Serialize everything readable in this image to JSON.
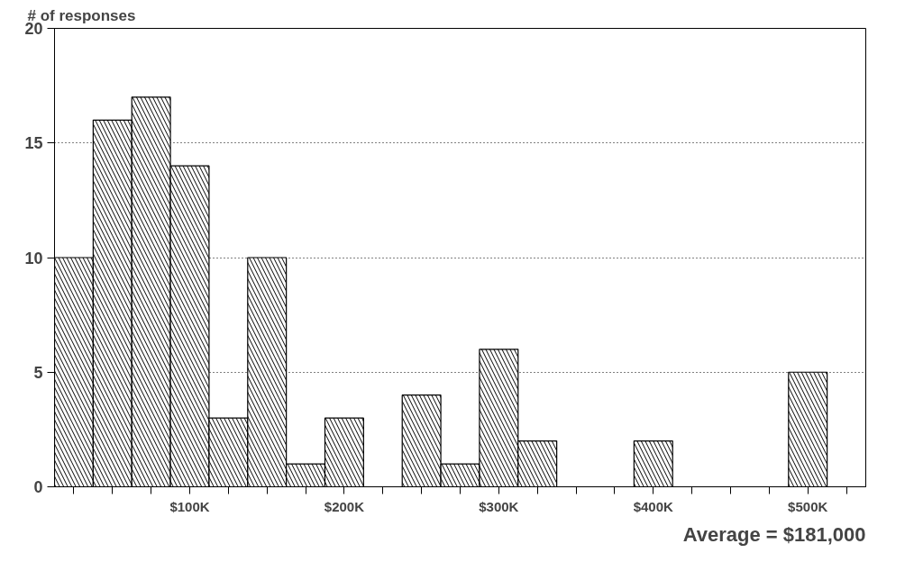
{
  "chart_data": {
    "type": "histogram",
    "ylabel": "# of responses",
    "annotations": [
      "Average = $181,000"
    ],
    "bins": [
      12.5,
      37.5,
      62.5,
      87.5,
      112.5,
      137.5,
      162.5,
      187.5,
      212.5,
      237.5,
      262.5,
      287.5,
      312.5,
      337.5,
      362.5,
      387.5,
      412.5,
      437.5,
      462.5,
      487.5,
      512.5
    ],
    "values": [
      10,
      16,
      17,
      14,
      3,
      10,
      1,
      3,
      0,
      4,
      1,
      6,
      2,
      0,
      0,
      2,
      0,
      0,
      0,
      5
    ],
    "color": "#000000",
    "xlim": [
      12.5,
      537.5
    ],
    "xticks": [
      {
        "value": 25,
        "label": null
      },
      {
        "value": 50,
        "label": null
      },
      {
        "value": 75,
        "label": null
      },
      {
        "value": 100,
        "label": "$100K"
      },
      {
        "value": 125,
        "label": null
      },
      {
        "value": 150,
        "label": null
      },
      {
        "value": 175,
        "label": null
      },
      {
        "value": 200,
        "label": "$200K"
      },
      {
        "value": 225,
        "label": null
      },
      {
        "value": 250,
        "label": null
      },
      {
        "value": 275,
        "label": null
      },
      {
        "value": 300,
        "label": "$300K"
      },
      {
        "value": 325,
        "label": null
      },
      {
        "value": 350,
        "label": null
      },
      {
        "value": 375,
        "label": null
      },
      {
        "value": 400,
        "label": "$400K"
      },
      {
        "value": 425,
        "label": null
      },
      {
        "value": 450,
        "label": null
      },
      {
        "value": 475,
        "label": null
      },
      {
        "value": 500,
        "label": "$500K"
      },
      {
        "value": 525,
        "label": null
      }
    ],
    "ylim": [
      0,
      20
    ],
    "yticks": [
      0,
      5,
      10,
      15,
      20
    ],
    "grid": "y"
  }
}
